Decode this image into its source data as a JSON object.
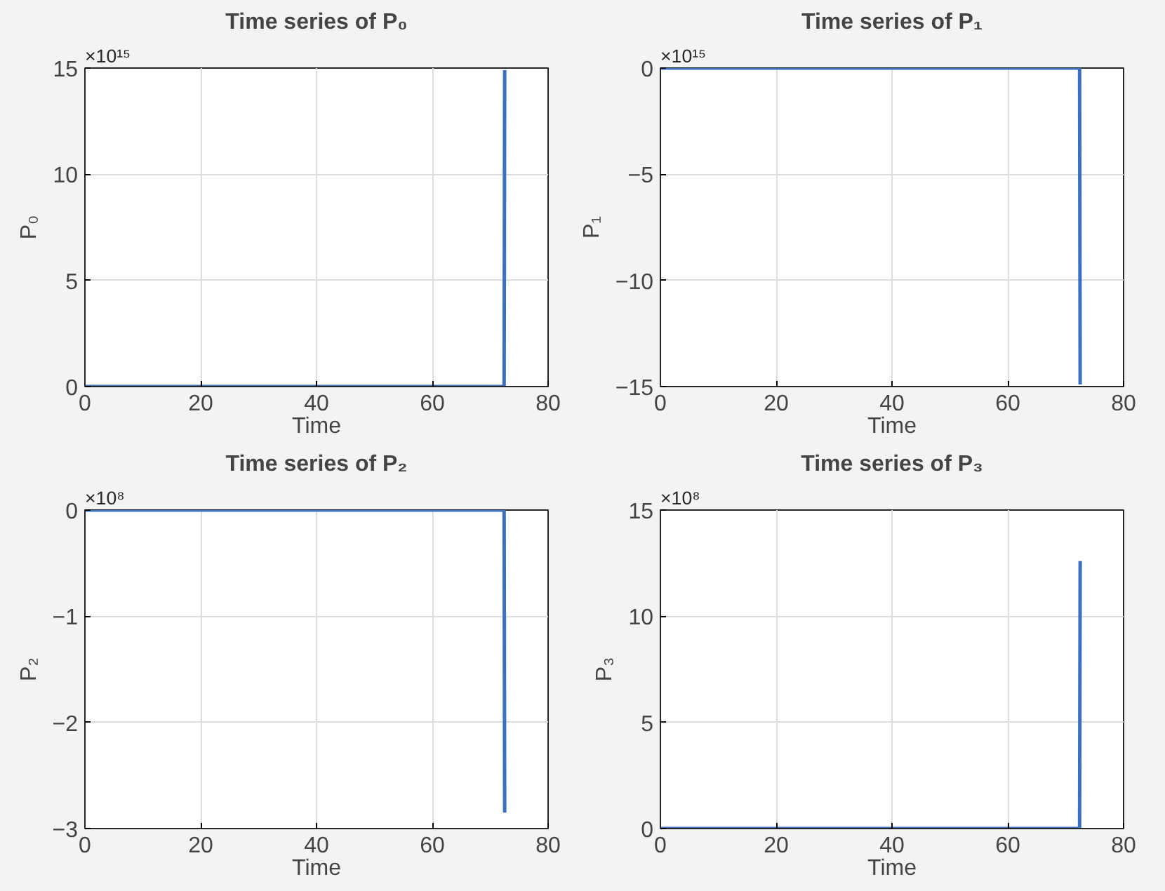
{
  "chart_data": [
    {
      "type": "line",
      "title": "Time series of P₀",
      "xlabel": "Time",
      "ylabel": "P₀",
      "x": [
        0,
        72.4,
        72.5
      ],
      "series": [
        {
          "color": "#3a70c0",
          "values": [
            0,
            0,
            14.9
          ]
        }
      ],
      "xlim": [
        0,
        80
      ],
      "xticks": [
        0,
        20,
        40,
        60,
        80
      ],
      "ylim": [
        0,
        15
      ],
      "yticks": [
        0,
        5,
        10,
        15
      ],
      "grid": true,
      "annotations": [
        "×10¹⁵"
      ]
    },
    {
      "type": "line",
      "title": "Time series of P₁",
      "xlabel": "Time",
      "ylabel": "P₁",
      "x": [
        0,
        72.4,
        72.5
      ],
      "series": [
        {
          "color": "#3a70c0",
          "values": [
            0,
            0,
            -14.9
          ]
        }
      ],
      "xlim": [
        0,
        80
      ],
      "xticks": [
        0,
        20,
        40,
        60,
        80
      ],
      "ylim": [
        -15,
        0
      ],
      "yticks": [
        -15,
        -10,
        -5,
        0
      ],
      "grid": true,
      "annotations": [
        "×10¹⁵"
      ]
    },
    {
      "type": "line",
      "title": "Time series of P₂",
      "ylabel": "P₂",
      "xlabel": "Time",
      "x": [
        0,
        72.4,
        72.5
      ],
      "series": [
        {
          "color": "#3a70c0",
          "values": [
            0,
            0,
            -2.85
          ]
        }
      ],
      "xlim": [
        0,
        80
      ],
      "xticks": [
        0,
        20,
        40,
        60,
        80
      ],
      "ylim": [
        -3,
        0
      ],
      "yticks": [
        -3,
        -2,
        -1,
        0
      ],
      "grid": true,
      "annotations": [
        "×10⁸"
      ]
    },
    {
      "type": "line",
      "title": "Time series of P₃",
      "ylabel": "P₃",
      "xlabel": "Time",
      "x": [
        0,
        72.4,
        72.5
      ],
      "series": [
        {
          "color": "#3a70c0",
          "values": [
            0,
            0,
            12.6
          ]
        }
      ],
      "xlim": [
        0,
        80
      ],
      "xticks": [
        0,
        20,
        40,
        60,
        80
      ],
      "ylim": [
        0,
        15
      ],
      "yticks": [
        0,
        5,
        10,
        15
      ],
      "grid": true,
      "annotations": [
        "×10⁸"
      ]
    }
  ]
}
